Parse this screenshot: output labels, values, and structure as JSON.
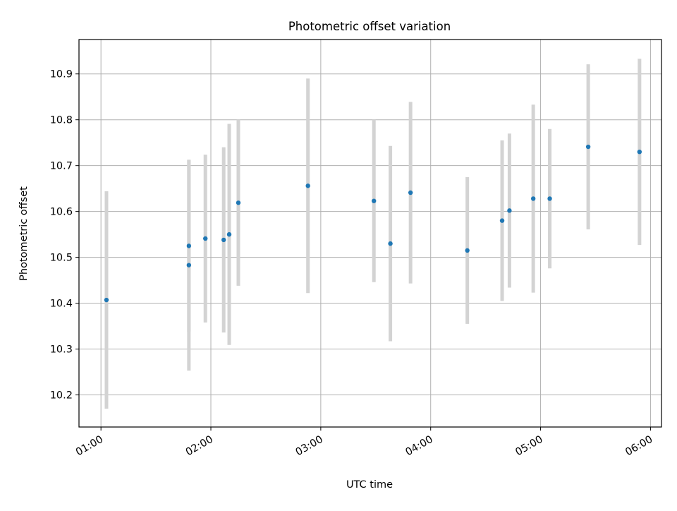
{
  "chart_data": {
    "type": "scatter",
    "title": "Photometric offset variation",
    "xlabel": "UTC time",
    "ylabel": "Photometric offset",
    "x_unit": "time (HH:MM, UTC)",
    "xlim": [
      "00:48",
      "06:06"
    ],
    "ylim": [
      10.13,
      10.975
    ],
    "x_ticks": [
      "01:00",
      "02:00",
      "03:00",
      "04:00",
      "05:00",
      "06:00"
    ],
    "y_ticks": [
      "10.2",
      "10.3",
      "10.4",
      "10.5",
      "10.6",
      "10.7",
      "10.8",
      "10.9"
    ],
    "grid": true,
    "x_tick_rotation": "rotated 30 degrees",
    "series": [
      {
        "color": "#1f77b4",
        "errorbar_color": "#d3d3d3",
        "points": [
          {
            "x": "01:03",
            "y": 10.407,
            "yerr": 0.237
          },
          {
            "x": "01:48",
            "y": 10.525,
            "yerr": 0.187
          },
          {
            "x": "01:48",
            "y": 10.483,
            "yerr": 0.23
          },
          {
            "x": "01:57",
            "y": 10.541,
            "yerr": 0.183
          },
          {
            "x": "02:07",
            "y": 10.538,
            "yerr": 0.202
          },
          {
            "x": "02:10",
            "y": 10.55,
            "yerr": 0.241
          },
          {
            "x": "02:15",
            "y": 10.619,
            "yerr": 0.181
          },
          {
            "x": "02:53",
            "y": 10.656,
            "yerr": 0.234
          },
          {
            "x": "03:29",
            "y": 10.623,
            "yerr": 0.177
          },
          {
            "x": "03:38",
            "y": 10.53,
            "yerr": 0.213
          },
          {
            "x": "03:49",
            "y": 10.641,
            "yerr": 0.198
          },
          {
            "x": "04:20",
            "y": 10.515,
            "yerr": 0.16
          },
          {
            "x": "04:39",
            "y": 10.58,
            "yerr": 0.175
          },
          {
            "x": "04:43",
            "y": 10.602,
            "yerr": 0.168
          },
          {
            "x": "04:56",
            "y": 10.628,
            "yerr": 0.205
          },
          {
            "x": "05:05",
            "y": 10.628,
            "yerr": 0.152
          },
          {
            "x": "05:26",
            "y": 10.741,
            "yerr": 0.18
          },
          {
            "x": "05:54",
            "y": 10.73,
            "yerr": 0.203
          }
        ]
      }
    ]
  }
}
